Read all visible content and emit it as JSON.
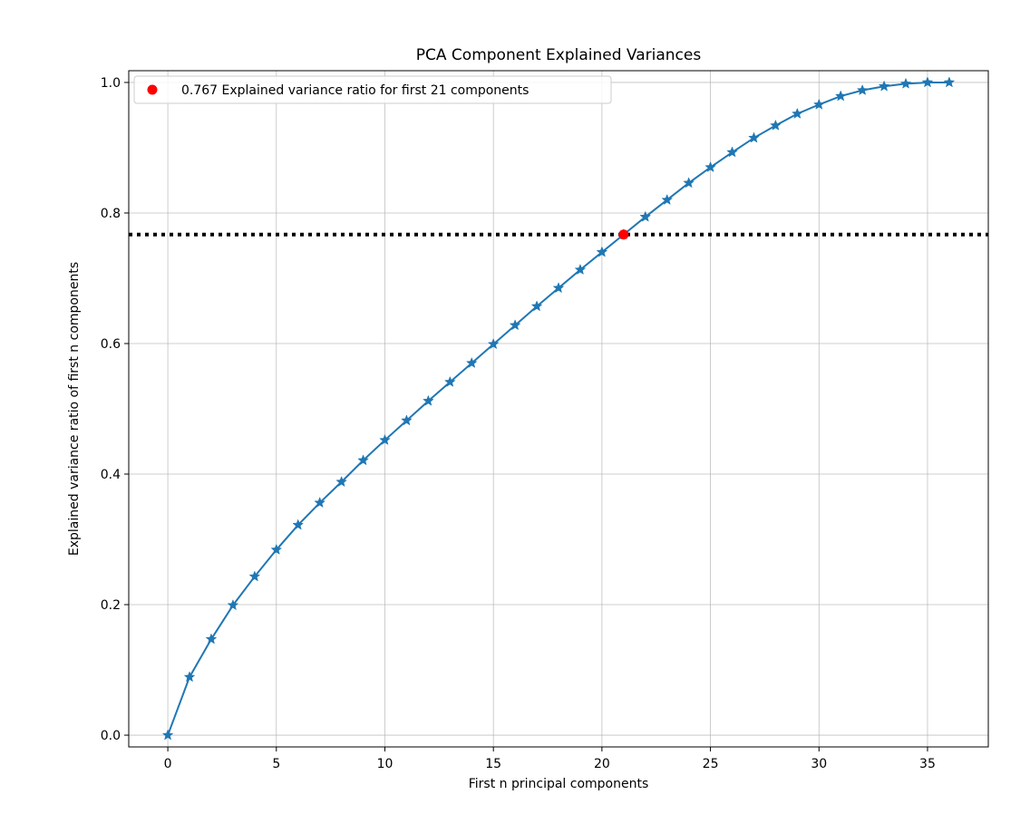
{
  "chart_data": {
    "type": "line",
    "title": "PCA Component Explained Variances",
    "xlabel": "First n principal components",
    "ylabel": "Explained variance ratio of first n components",
    "xlim": [
      -1.8,
      37.8
    ],
    "ylim": [
      -0.018,
      1.018
    ],
    "x_ticks": [
      0,
      5,
      10,
      15,
      20,
      25,
      30,
      35
    ],
    "y_ticks": [
      0.0,
      0.2,
      0.4,
      0.6,
      0.8,
      1.0
    ],
    "y_tick_labels": [
      "0.0",
      "0.2",
      "0.4",
      "0.6",
      "0.8",
      "1.0"
    ],
    "grid": true,
    "legend_position": "upper-left",
    "series": [
      {
        "type": "line",
        "marker": "star",
        "color": "#1f77b4",
        "x": [
          0,
          1,
          2,
          3,
          4,
          5,
          6,
          7,
          8,
          9,
          10,
          11,
          12,
          13,
          14,
          15,
          16,
          17,
          18,
          19,
          20,
          21,
          22,
          23,
          24,
          25,
          26,
          27,
          28,
          29,
          30,
          31,
          32,
          33,
          34,
          35,
          36
        ],
        "values": [
          0.0,
          0.089,
          0.147,
          0.199,
          0.243,
          0.284,
          0.322,
          0.356,
          0.388,
          0.421,
          0.452,
          0.482,
          0.512,
          0.541,
          0.57,
          0.599,
          0.628,
          0.657,
          0.685,
          0.713,
          0.74,
          0.767,
          0.794,
          0.82,
          0.846,
          0.87,
          0.893,
          0.915,
          0.934,
          0.952,
          0.966,
          0.979,
          0.988,
          0.994,
          0.998,
          1.0,
          1.0
        ]
      }
    ],
    "threshold_line": {
      "y": 0.767,
      "style": "dotted",
      "color": "#000000"
    },
    "highlight_point": {
      "x": 21,
      "y": 0.767,
      "color": "#ff0000",
      "label": "0.767 Explained variance ratio for first 21 components"
    }
  }
}
